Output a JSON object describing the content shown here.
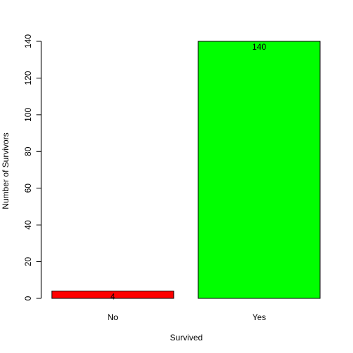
{
  "chart_data": {
    "type": "bar",
    "categories": [
      "No",
      "Yes"
    ],
    "values": [
      4,
      140
    ],
    "colors": [
      "#ff0000",
      "#00ff00"
    ],
    "xlabel": "Survived",
    "ylabel": "Number of Survivors",
    "ylim": [
      0,
      140
    ],
    "yticks": [
      0,
      20,
      40,
      60,
      80,
      100,
      120,
      140
    ],
    "value_labels": [
      "4",
      "140"
    ],
    "grid": false,
    "legend": "none"
  }
}
